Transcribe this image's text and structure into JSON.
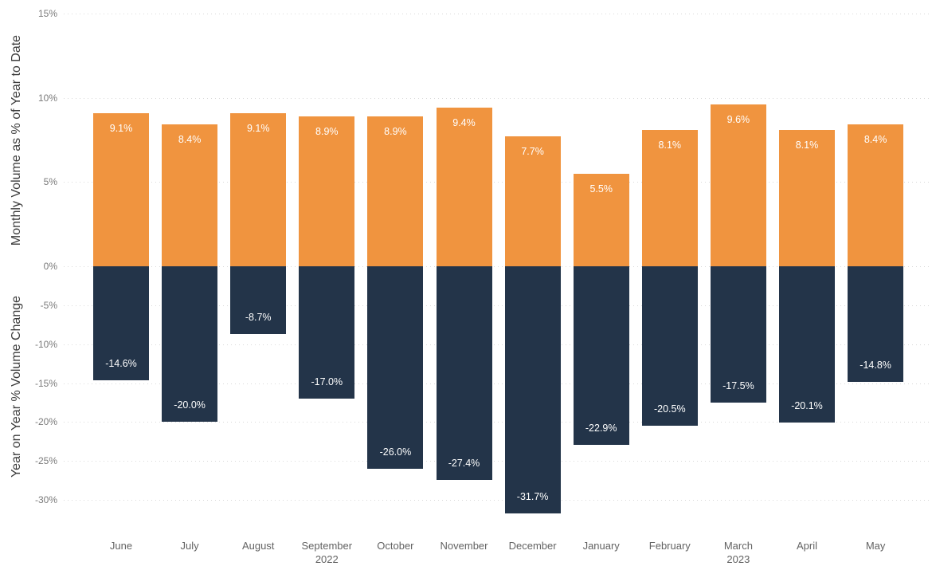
{
  "chart_data": {
    "type": "bar",
    "subtype": "dual-axis-diverging-columns",
    "title": "",
    "grid": "dotted",
    "legend": "none",
    "background": "#FFFFFF",
    "categories": [
      {
        "label": "June"
      },
      {
        "label": "July"
      },
      {
        "label": "August"
      },
      {
        "label": "September",
        "sub": "2022"
      },
      {
        "label": "October"
      },
      {
        "label": "November"
      },
      {
        "label": "December"
      },
      {
        "label": "January"
      },
      {
        "label": "February"
      },
      {
        "label": "March",
        "sub": "2023"
      },
      {
        "label": "April"
      },
      {
        "label": "May"
      }
    ],
    "series": [
      {
        "name": "Monthly Volume as % of Year to Date",
        "axis": "top",
        "color": "#F0943F",
        "values": [
          9.1,
          8.4,
          9.1,
          8.9,
          8.9,
          9.4,
          7.7,
          5.5,
          8.1,
          9.6,
          8.1,
          8.4
        ],
        "labels": [
          "9.1%",
          "8.4%",
          "9.1%",
          "8.9%",
          "8.9%",
          "9.4%",
          "7.7%",
          "5.5%",
          "8.1%",
          "9.6%",
          "8.1%",
          "8.4%"
        ]
      },
      {
        "name": "Year on Year % Volume Change",
        "axis": "bottom",
        "color": "#233449",
        "values": [
          -14.6,
          -20.0,
          -8.7,
          -17.0,
          -26.0,
          -27.4,
          -31.7,
          -22.9,
          -20.5,
          -17.5,
          -20.1,
          -14.8
        ],
        "labels": [
          "-14.6%",
          "-20.0%",
          "-8.7%",
          "-17.0%",
          "-26.0%",
          "-27.4%",
          "-31.7%",
          "-22.9%",
          "-20.5%",
          "-17.5%",
          "-20.1%",
          "-14.8%"
        ]
      }
    ],
    "top_axis": {
      "label": "Monthly Volume as % of Year to Date",
      "max": 15,
      "ticks": [
        {
          "v": 15,
          "t": "15%"
        },
        {
          "v": 10,
          "t": "10%"
        },
        {
          "v": 5,
          "t": "5%"
        },
        {
          "v": 0,
          "t": "0%"
        }
      ]
    },
    "bottom_axis": {
      "label": "Year on Year % Volume Change",
      "min": -32.5,
      "ticks": [
        {
          "v": -5,
          "t": "-5%"
        },
        {
          "v": -10,
          "t": "-10%"
        },
        {
          "v": -15,
          "t": "-15%"
        },
        {
          "v": -20,
          "t": "-20%"
        },
        {
          "v": -25,
          "t": "-25%"
        },
        {
          "v": -30,
          "t": "-30%"
        }
      ]
    },
    "data_label_color": "#FFFFFF"
  },
  "colors": {
    "positive_bar": "#F0943F",
    "negative_bar": "#233449",
    "grid": "#D9D9D9",
    "tick_text": "#7A7A7A",
    "category_text": "#636363",
    "axis_title_text": "#3C3C3C",
    "background": "#FFFFFF"
  }
}
